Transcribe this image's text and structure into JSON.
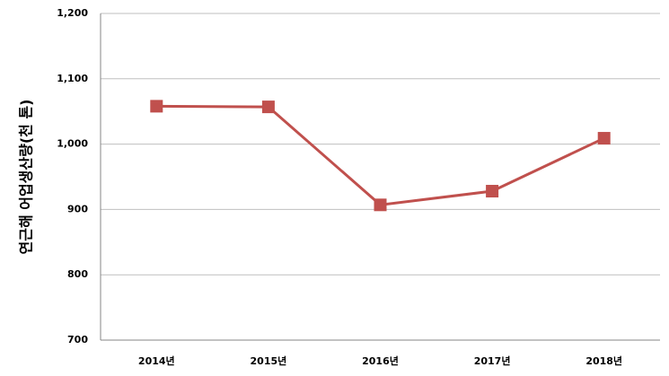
{
  "chart_data": {
    "type": "line",
    "y_label": "연근해 어업생산량(천 톤)",
    "categories": [
      "2014년",
      "2015년",
      "2016년",
      "2017년",
      "2018년"
    ],
    "series": [
      {
        "name": "연근해 어업생산량",
        "color": "#c0504d",
        "values": [
          1058,
          1057,
          907,
          928,
          1009
        ]
      }
    ],
    "ylim": [
      700,
      1200
    ],
    "yticks": [
      700,
      800,
      900,
      {
        "value": 1000,
        "label": "1,000"
      },
      {
        "value": 1100,
        "label": "1,100"
      },
      {
        "value": 1200,
        "label": "1,200"
      }
    ],
    "grid": true
  }
}
